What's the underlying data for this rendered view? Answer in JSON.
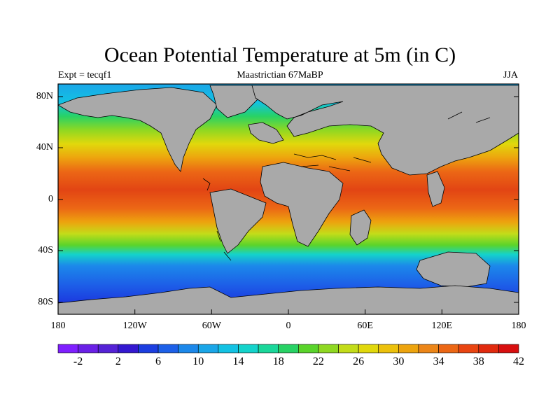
{
  "title": "Ocean Potential Temperature at 5m (in C)",
  "subtitle_left": "Expt = tecqf1",
  "subtitle_center": "Maastrictian 67MaBP",
  "subtitle_right": "JJA",
  "y_ticks": [
    "80N",
    "40N",
    "0",
    "40S",
    "80S"
  ],
  "x_ticks": [
    "180",
    "120W",
    "60W",
    "0",
    "60E",
    "120E",
    "180"
  ],
  "colorbar": {
    "labels": [
      "-2",
      "2",
      "6",
      "10",
      "14",
      "18",
      "22",
      "26",
      "30",
      "34",
      "38",
      "42"
    ],
    "colors": [
      "#7f1fff",
      "#6a20e6",
      "#5522d6",
      "#3418d0",
      "#1c3ee0",
      "#1d60e8",
      "#1c88ea",
      "#1aa6e8",
      "#13c2e3",
      "#14d3cb",
      "#1ad79a",
      "#28d265",
      "#5ad42b",
      "#8fd822",
      "#c3dc19",
      "#e1d80c",
      "#ecc10c",
      "#eda40e",
      "#ec8618",
      "#ec6715",
      "#e94511",
      "#e12a0e",
      "#d80f0f"
    ]
  },
  "map_colors": {
    "land": "#a9a9a9",
    "ocean_deep_cold": "#3b2fe0",
    "ocean_warm": "#e24514"
  }
}
